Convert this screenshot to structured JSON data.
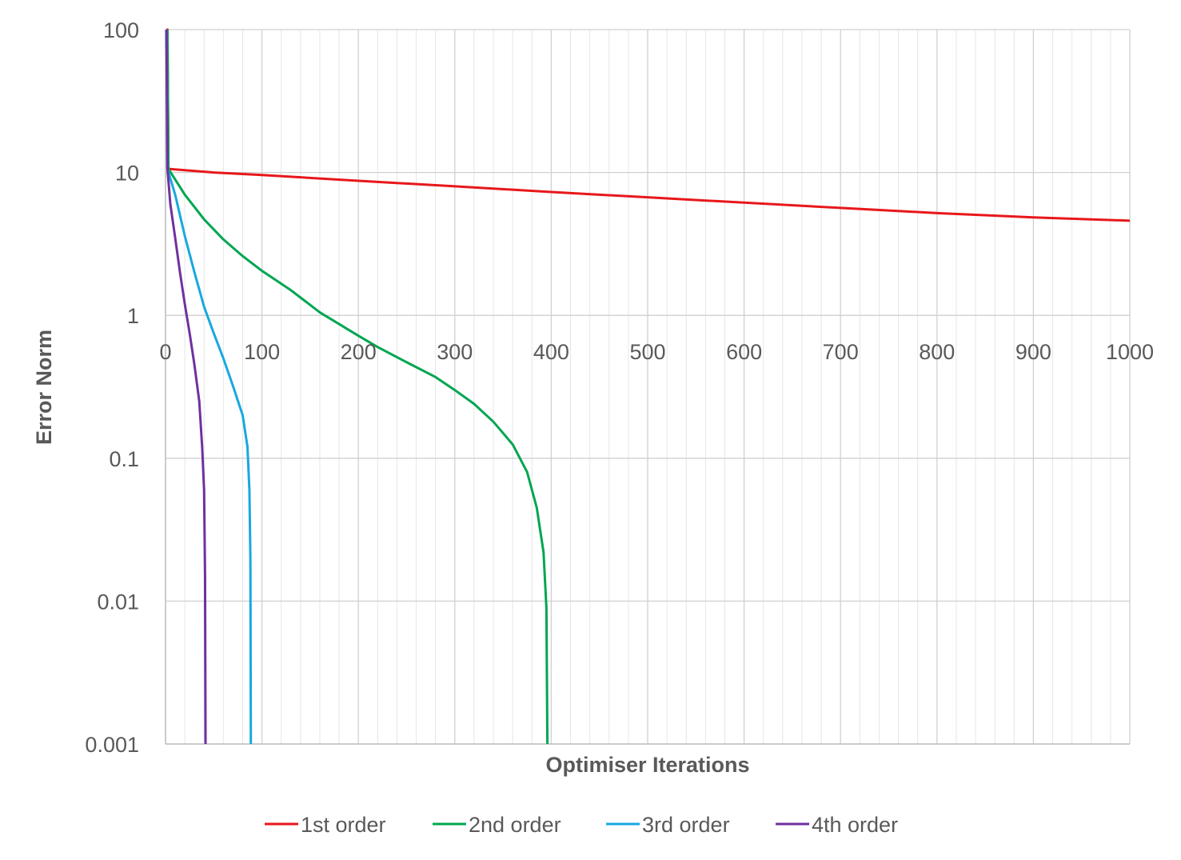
{
  "chart_data": {
    "type": "line",
    "xlabel": "Optimiser Iterations",
    "ylabel": "Error Norm",
    "xlim": [
      0,
      1000
    ],
    "ylim": [
      0.001,
      100
    ],
    "yscale": "log",
    "x_ticks": [
      "0",
      "100",
      "200",
      "300",
      "400",
      "500",
      "600",
      "700",
      "800",
      "900",
      "1000"
    ],
    "y_ticks": [
      "100",
      "10",
      "1",
      "0.1",
      "0.01",
      "0.001"
    ],
    "grid": true,
    "legend_position": "bottom",
    "series": [
      {
        "name": "1st order",
        "color": "#e8171b",
        "points": [
          [
            1,
            100
          ],
          [
            2,
            100
          ],
          [
            3,
            10.6
          ],
          [
            50,
            10.0
          ],
          [
            100,
            9.6
          ],
          [
            200,
            8.75
          ],
          [
            300,
            8.0
          ],
          [
            400,
            7.3
          ],
          [
            500,
            6.7
          ],
          [
            600,
            6.15
          ],
          [
            700,
            5.65
          ],
          [
            800,
            5.2
          ],
          [
            900,
            4.85
          ],
          [
            1000,
            4.6
          ]
        ]
      },
      {
        "name": "2nd order",
        "color": "#00a651",
        "points": [
          [
            2,
            100
          ],
          [
            3,
            10.6
          ],
          [
            20,
            7.0
          ],
          [
            40,
            4.7
          ],
          [
            60,
            3.4
          ],
          [
            80,
            2.6
          ],
          [
            100,
            2.05
          ],
          [
            130,
            1.5
          ],
          [
            160,
            1.05
          ],
          [
            200,
            0.72
          ],
          [
            220,
            0.6
          ],
          [
            250,
            0.47
          ],
          [
            280,
            0.37
          ],
          [
            300,
            0.3
          ],
          [
            320,
            0.24
          ],
          [
            340,
            0.18
          ],
          [
            360,
            0.125
          ],
          [
            375,
            0.08
          ],
          [
            385,
            0.045
          ],
          [
            392,
            0.022
          ],
          [
            395,
            0.009
          ],
          [
            396,
            0.001
          ]
        ]
      },
      {
        "name": "3rd order",
        "color": "#18a8e0",
        "points": [
          [
            1,
            100
          ],
          [
            2,
            10.6
          ],
          [
            10,
            7.0
          ],
          [
            20,
            3.6
          ],
          [
            30,
            2.0
          ],
          [
            40,
            1.15
          ],
          [
            50,
            0.75
          ],
          [
            60,
            0.5
          ],
          [
            70,
            0.32
          ],
          [
            80,
            0.2
          ],
          [
            85,
            0.12
          ],
          [
            87,
            0.06
          ],
          [
            88,
            0.02
          ],
          [
            88.5,
            0.001
          ]
        ]
      },
      {
        "name": "4th order",
        "color": "#7030a0",
        "points": [
          [
            1,
            100
          ],
          [
            2,
            10.6
          ],
          [
            5,
            6.0
          ],
          [
            10,
            3.5
          ],
          [
            15,
            2.0
          ],
          [
            20,
            1.2
          ],
          [
            25,
            0.75
          ],
          [
            30,
            0.45
          ],
          [
            35,
            0.25
          ],
          [
            38,
            0.12
          ],
          [
            40,
            0.06
          ],
          [
            41,
            0.015
          ],
          [
            41.5,
            0.001
          ]
        ]
      }
    ]
  }
}
